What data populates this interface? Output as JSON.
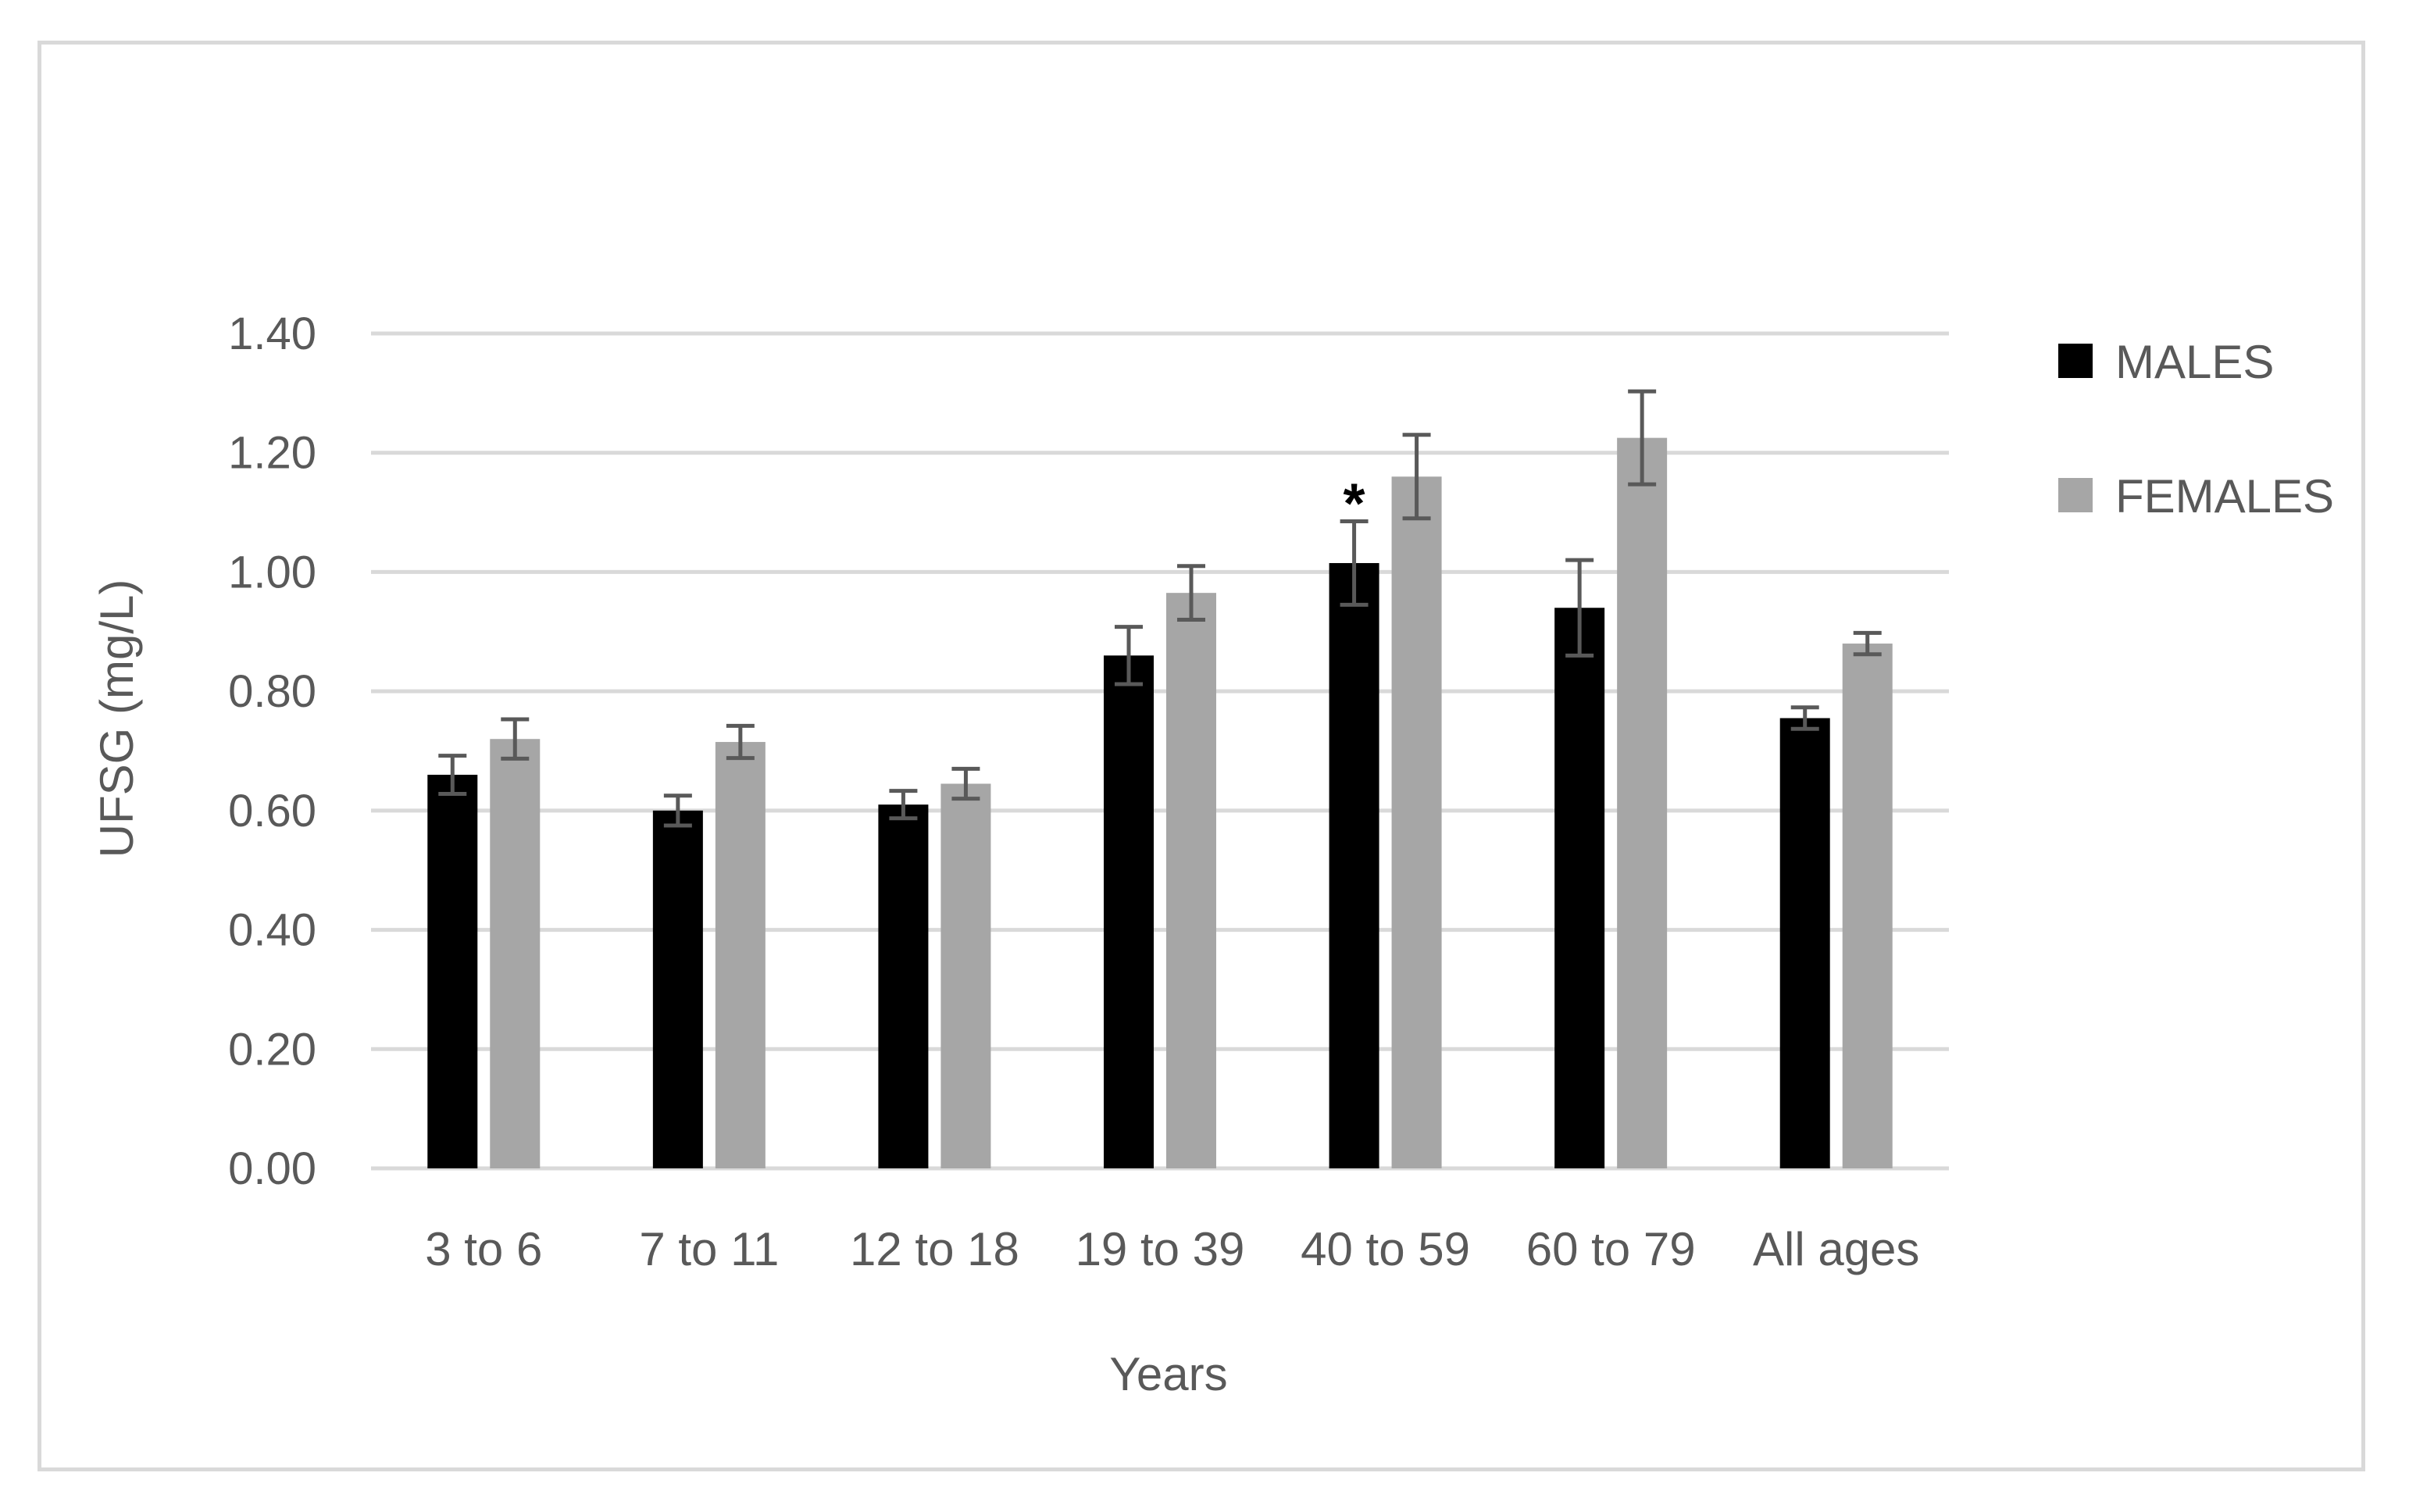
{
  "chart_data": {
    "type": "bar",
    "title": "",
    "xlabel": "Years",
    "ylabel": "UFSG (mg/L)",
    "ylim": [
      0,
      1.4
    ],
    "yticks": [
      "0.00",
      "0.20",
      "0.40",
      "0.60",
      "0.80",
      "1.00",
      "1.20",
      "1.40"
    ],
    "grid": true,
    "legend_position": "right",
    "categories": [
      "3 to 6",
      "7 to 11",
      "12 to 18",
      "19 to 39",
      "40 to 59",
      "60 to 79",
      "All ages"
    ],
    "series": [
      {
        "name": "MALES",
        "color": "#000000",
        "values": [
          0.66,
          0.6,
          0.61,
          0.86,
          1.015,
          0.94,
          0.755
        ],
        "error": [
          0.032,
          0.025,
          0.023,
          0.048,
          0.07,
          0.08,
          0.018
        ]
      },
      {
        "name": "FEMALES",
        "color": "#a6a6a6",
        "values": [
          0.72,
          0.715,
          0.645,
          0.965,
          1.16,
          1.225,
          0.88
        ],
        "error": [
          0.033,
          0.027,
          0.025,
          0.045,
          0.07,
          0.078,
          0.018
        ]
      }
    ],
    "annotations": [
      {
        "text": "*",
        "category": "40 to 59",
        "series": "MALES"
      }
    ],
    "colors": {
      "grid": "#d9d9d9",
      "text": "#595959",
      "error_bar": "#595959",
      "frame": "#d9d9d9"
    }
  }
}
